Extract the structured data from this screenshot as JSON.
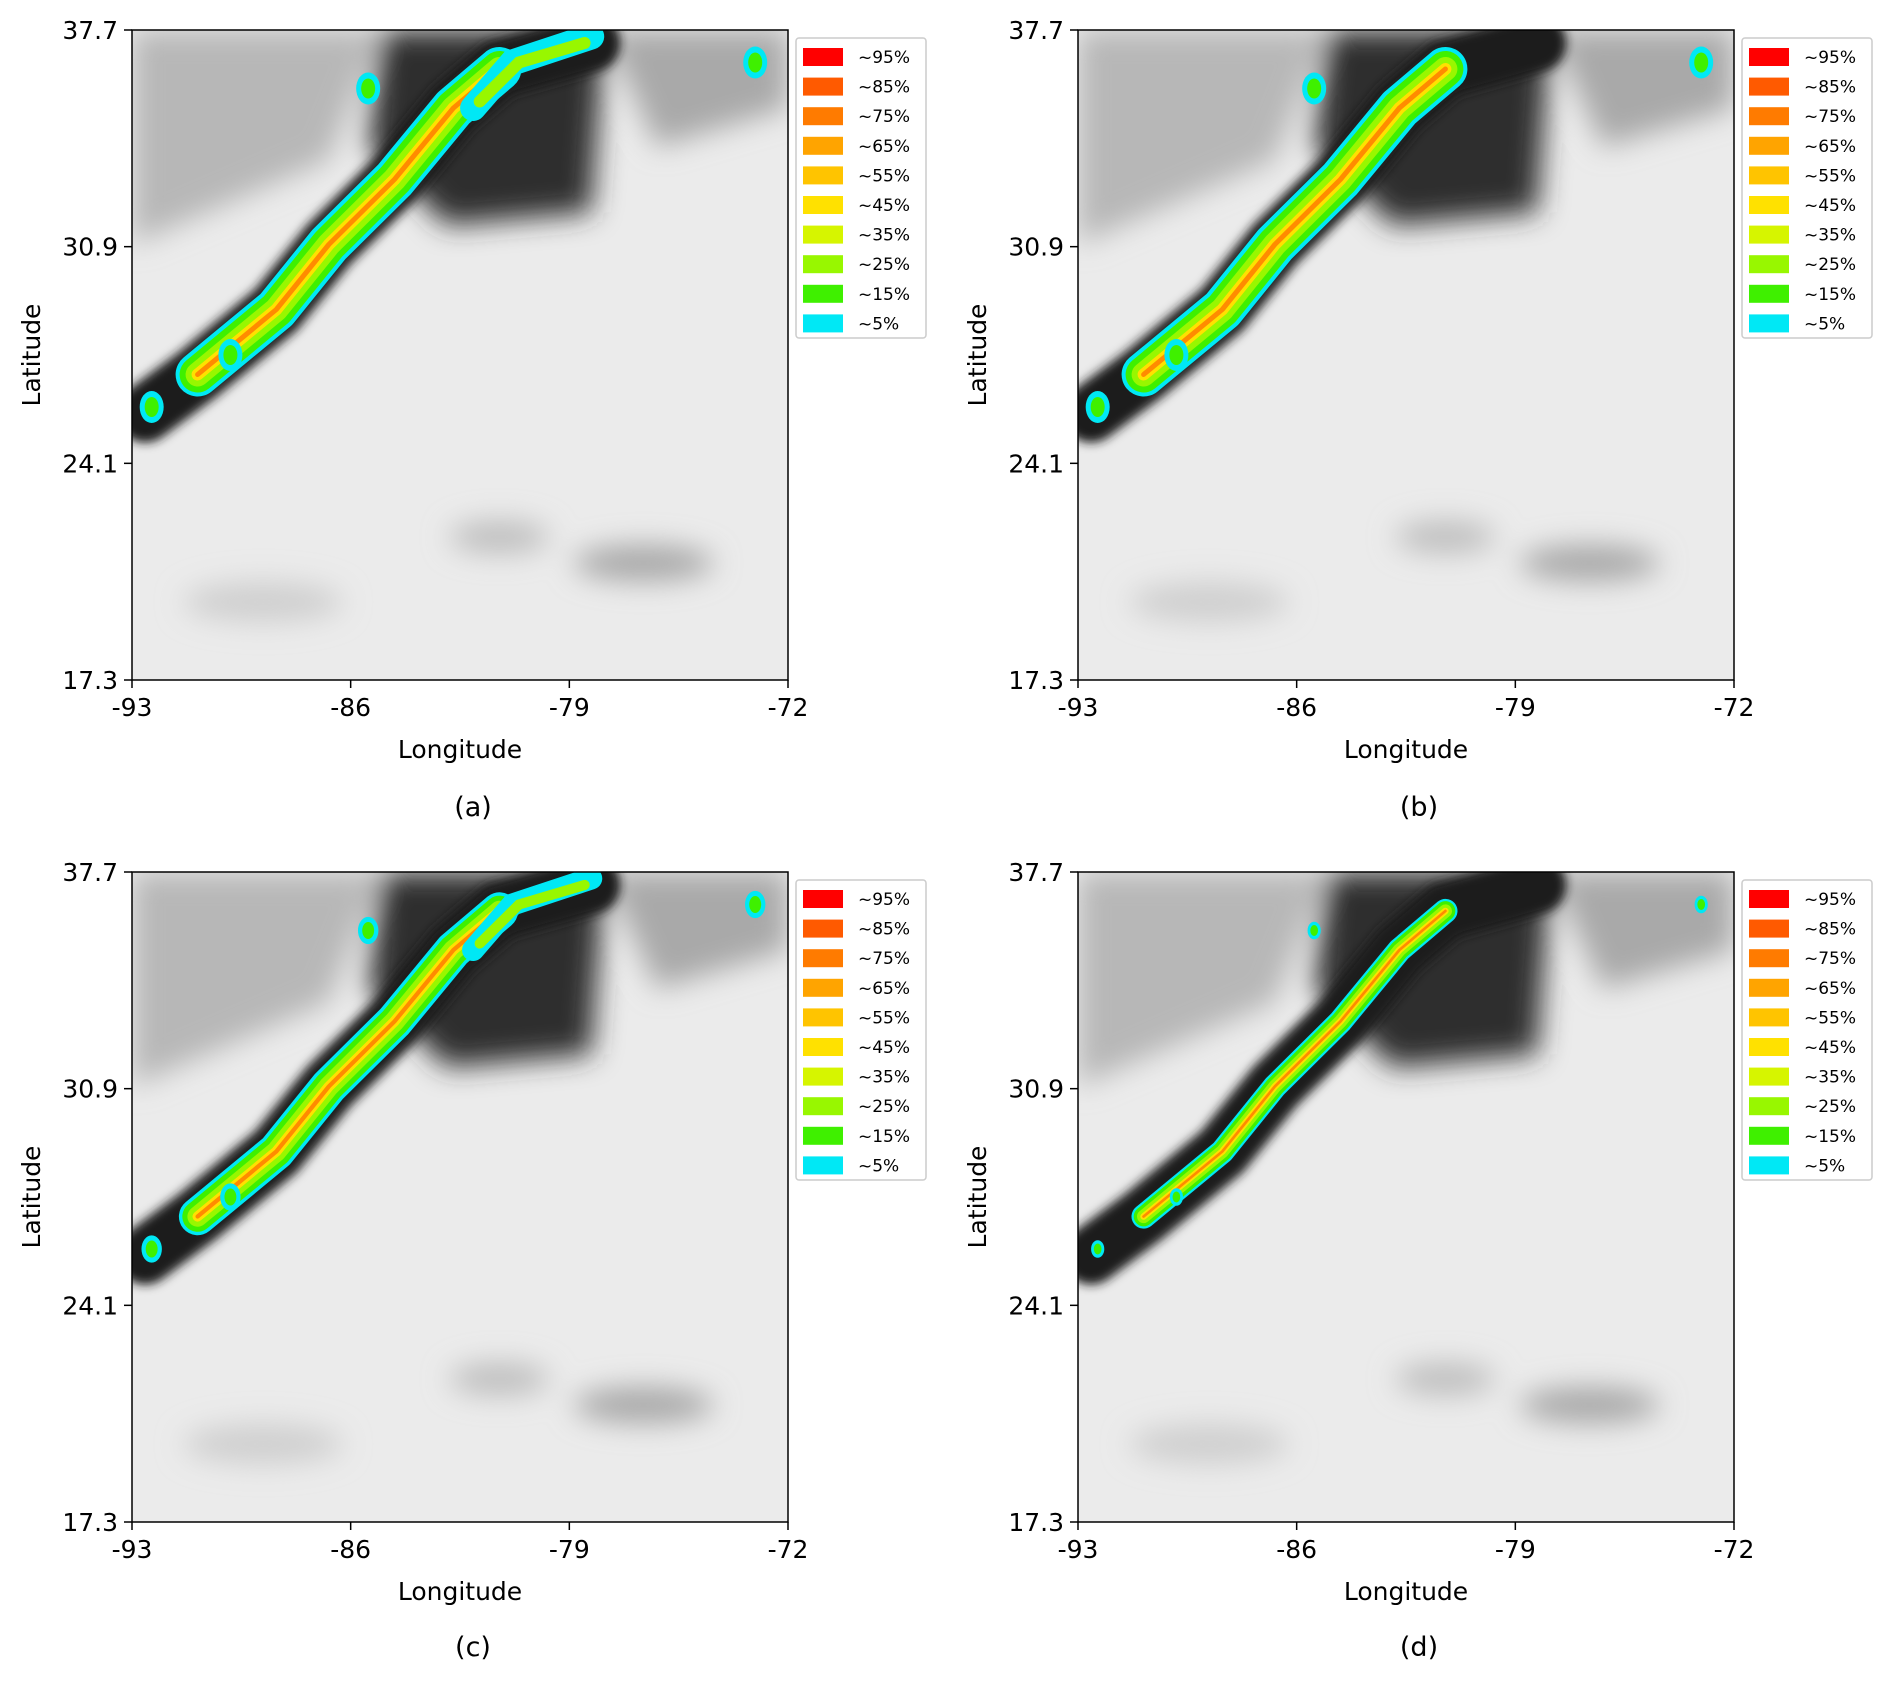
{
  "legend": {
    "entries": [
      {
        "label": "~95%",
        "color": "#ff0000"
      },
      {
        "label": "~85%",
        "color": "#ff5a00"
      },
      {
        "label": "~75%",
        "color": "#ff7b00"
      },
      {
        "label": "~65%",
        "color": "#ffa400"
      },
      {
        "label": "~55%",
        "color": "#ffc400"
      },
      {
        "label": "~45%",
        "color": "#ffe100"
      },
      {
        "label": "~35%",
        "color": "#d6f500"
      },
      {
        "label": "~25%",
        "color": "#98f700"
      },
      {
        "label": "~15%",
        "color": "#3ff000"
      },
      {
        "label": "~5%",
        "color": "#00e8f5"
      }
    ]
  },
  "axes": {
    "xlabel": "Longitude",
    "ylabel": "Latitude",
    "xticks": [
      "-93",
      "-86",
      "-79",
      "-72"
    ],
    "yticks": [
      "37.7",
      "30.9",
      "24.1",
      "17.3"
    ]
  },
  "panels": [
    {
      "caption": "(a)",
      "band_scale": 1.0,
      "north_branch": true
    },
    {
      "caption": "(b)",
      "band_scale": 1.0,
      "north_branch": false
    },
    {
      "caption": "(c)",
      "band_scale": 0.85,
      "north_branch": true
    },
    {
      "caption": "(d)",
      "band_scale": 0.55,
      "north_branch": false
    }
  ],
  "chart_data": [
    {
      "type": "heatmap",
      "caption": "(a)",
      "xlabel": "Longitude",
      "ylabel": "Latitude",
      "xlim": [
        -93,
        -72
      ],
      "ylim": [
        17.3,
        37.7
      ]
    },
    {
      "type": "heatmap",
      "caption": "(b)",
      "xlabel": "Longitude",
      "ylabel": "Latitude",
      "xlim": [
        -93,
        -72
      ],
      "ylim": [
        17.3,
        37.7
      ]
    },
    {
      "type": "heatmap",
      "caption": "(c)",
      "xlabel": "Longitude",
      "ylabel": "Latitude",
      "xlim": [
        -93,
        -72
      ],
      "ylim": [
        17.3,
        37.7
      ]
    },
    {
      "type": "heatmap",
      "caption": "(d)",
      "xlabel": "Longitude",
      "ylabel": "Latitude",
      "xlim": [
        -93,
        -72
      ],
      "ylim": [
        17.3,
        37.7
      ]
    }
  ]
}
